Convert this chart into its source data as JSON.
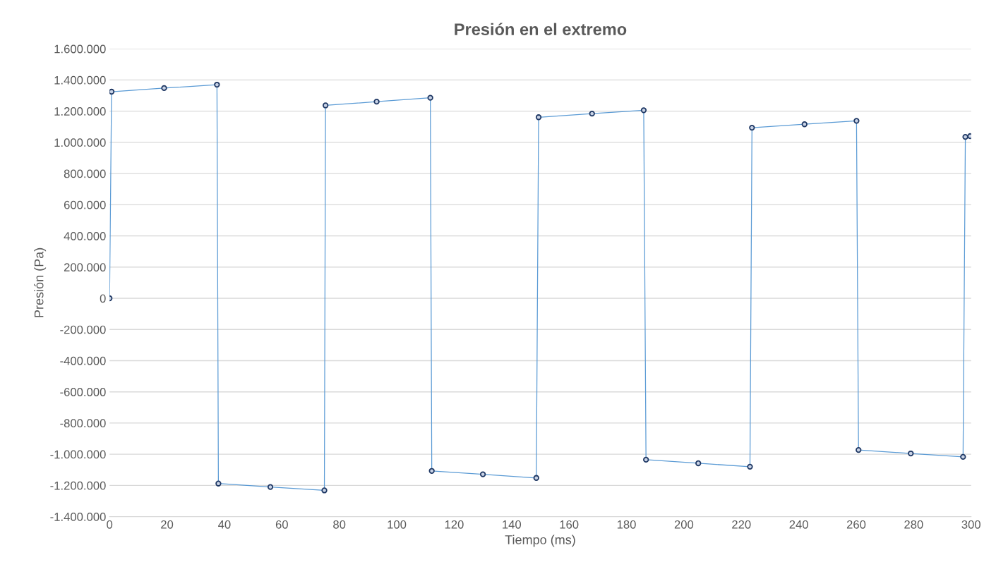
{
  "chart_data": {
    "type": "line",
    "title": "Presión en el extremo",
    "xlabel": "Tiempo (ms)",
    "ylabel": "Presión (Pa)",
    "x": [
      0,
      0.7,
      19,
      37.4,
      37.9,
      56,
      74.8,
      75.2,
      93,
      111.7,
      112.2,
      130,
      148.6,
      149.4,
      168,
      186,
      186.8,
      205,
      223,
      223.7,
      242,
      260.1,
      260.8,
      279,
      297.2,
      298,
      299.7
    ],
    "series": [
      {
        "color": "#5b9bd5",
        "values": [
          0,
          1325000,
          1348000,
          1370000,
          -1188000,
          -1210000,
          -1232000,
          1237000,
          1261000,
          1286000,
          -1107000,
          -1129000,
          -1152000,
          1161000,
          1184000,
          1206000,
          -1035000,
          -1058000,
          -1080000,
          1094000,
          1116000,
          1138000,
          -973000,
          -995000,
          -1017000,
          1035000,
          1040000
        ]
      }
    ],
    "marker": "circle",
    "line_style": "solid",
    "grid": "y",
    "legend": false,
    "xlim": [
      0,
      300
    ],
    "xticks": [
      0,
      20,
      40,
      60,
      80,
      100,
      120,
      140,
      160,
      180,
      200,
      220,
      240,
      260,
      280,
      300
    ],
    "ylim": [
      -1400000,
      1600000
    ],
    "yticks": [
      {
        "value": -1400000,
        "label": "-1.400.000"
      },
      {
        "value": -1200000,
        "label": "-1.200.000"
      },
      {
        "value": -1000000,
        "label": "-1.000.000"
      },
      {
        "value": -800000,
        "label": "-800.000"
      },
      {
        "value": -600000,
        "label": "-600.000"
      },
      {
        "value": -400000,
        "label": "-400.000"
      },
      {
        "value": -200000,
        "label": "-200.000"
      },
      {
        "value": 0,
        "label": "0"
      },
      {
        "value": 200000,
        "label": "200.000"
      },
      {
        "value": 400000,
        "label": "400.000"
      },
      {
        "value": 600000,
        "label": "600.000"
      },
      {
        "value": 800000,
        "label": "800.000"
      },
      {
        "value": 1000000,
        "label": "1.000.000"
      },
      {
        "value": 1200000,
        "label": "1.200.000"
      },
      {
        "value": 1400000,
        "label": "1.400.000"
      },
      {
        "value": 1600000,
        "label": "1.600.000"
      }
    ]
  }
}
